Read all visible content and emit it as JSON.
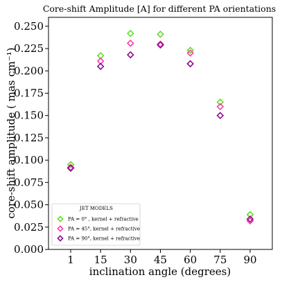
{
  "chart_data": {
    "type": "scatter",
    "title": "Core-shift Amplitude [A] for different PA orientations",
    "xlabel": "inclination angle (degrees)",
    "ylabel": "core-shift amplitude ( mas cm⁻¹)",
    "categories": [
      "1",
      "15",
      "30",
      "45",
      "60",
      "75",
      "90"
    ],
    "ylim": [
      0.0,
      0.26
    ],
    "yticks": [
      "0.000",
      "0.025",
      "0.050",
      "0.075",
      "0.100",
      "0.125",
      "0.150",
      "0.175",
      "0.200",
      "0.225",
      "0.250"
    ],
    "legend": {
      "title": "JET MODELS",
      "position": "lower-left"
    },
    "series": [
      {
        "name": "PA = 0°  , kernel + refractive",
        "color": "#66dd22",
        "marker": "diamond",
        "values": [
          0.095,
          0.217,
          0.242,
          0.241,
          0.223,
          0.165,
          0.039
        ]
      },
      {
        "name": "PA = 45°, kernel + refractive",
        "color": "#ff3ba8",
        "marker": "diamond",
        "values": [
          0.092,
          0.211,
          0.231,
          0.23,
          0.22,
          0.16,
          0.032
        ]
      },
      {
        "name": "PA = 90°, kernel + refractive",
        "color": "#8b0f8f",
        "marker": "diamond",
        "values": [
          0.091,
          0.205,
          0.218,
          0.229,
          0.208,
          0.15,
          0.034
        ]
      }
    ]
  }
}
